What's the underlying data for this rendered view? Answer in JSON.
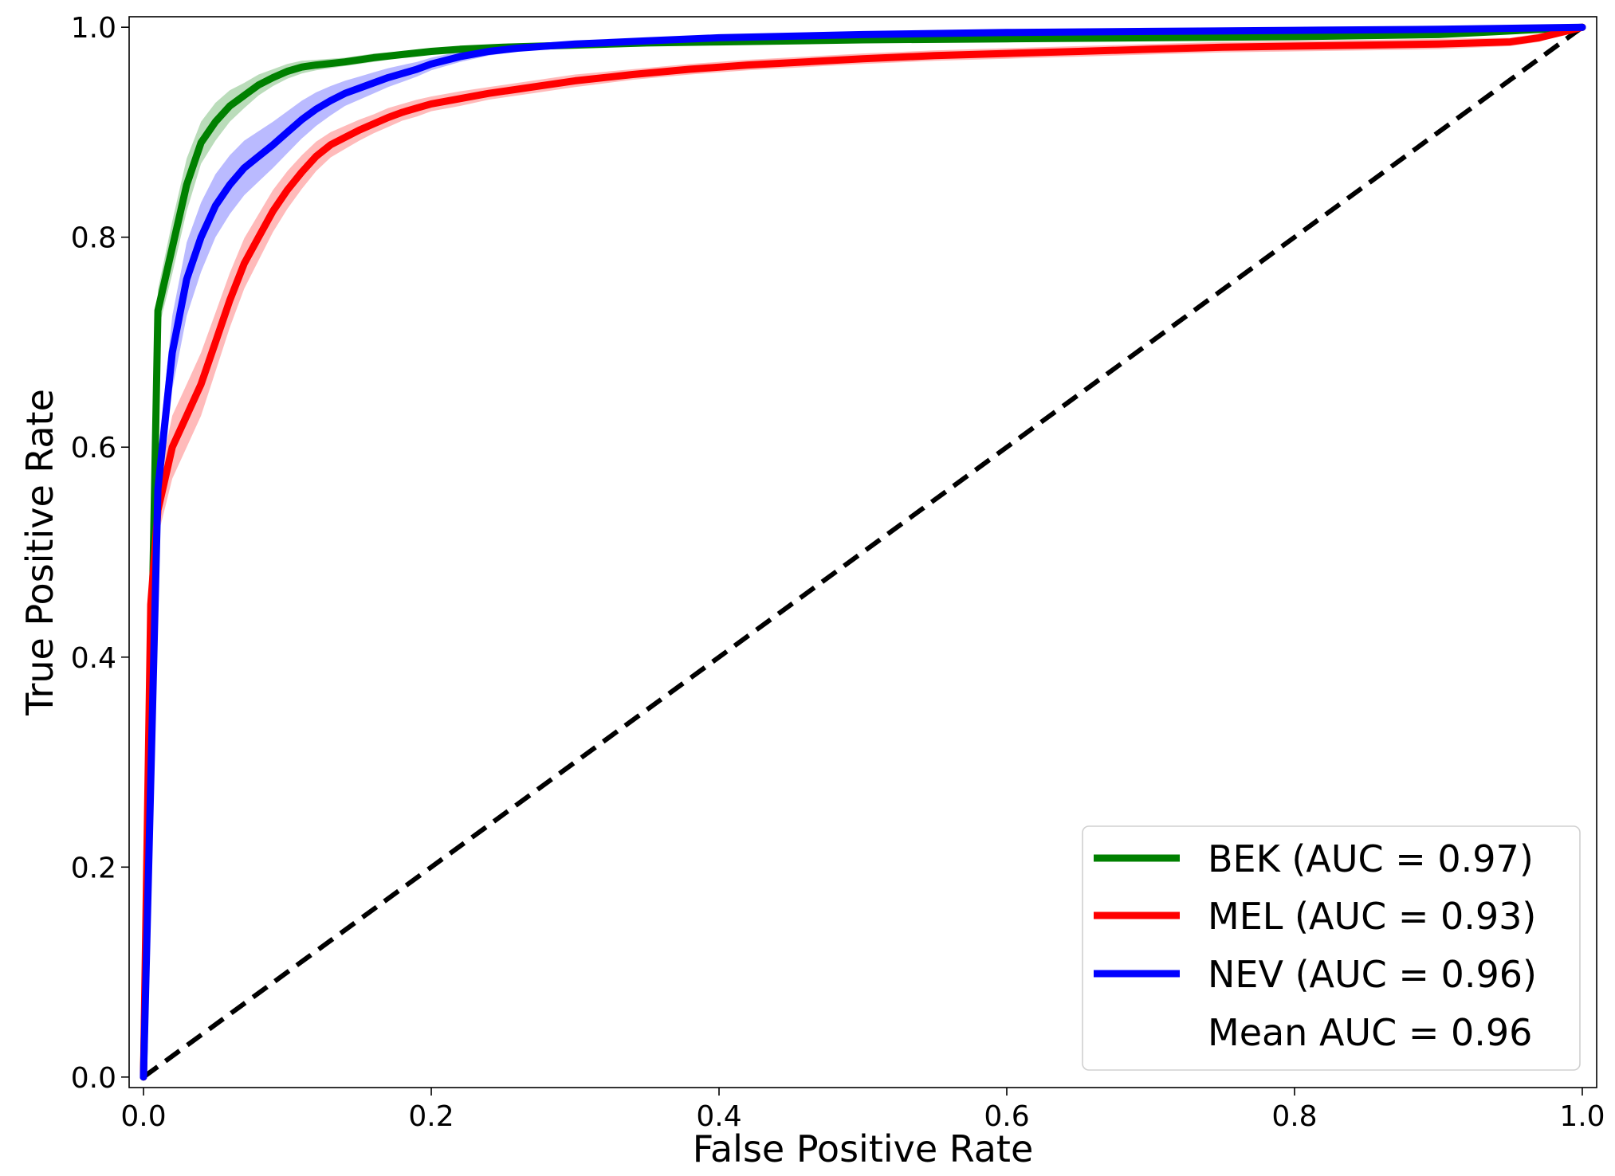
{
  "chart_data": {
    "type": "line",
    "title": "",
    "xlabel": "False Positive Rate",
    "ylabel": "True Positive Rate",
    "xlim": [
      -0.01,
      1.01
    ],
    "ylim": [
      -0.01,
      1.01
    ],
    "xticks": [
      {
        "value": 0.0,
        "label": "0.0"
      },
      {
        "value": 0.2,
        "label": "0.2"
      },
      {
        "value": 0.4,
        "label": "0.4"
      },
      {
        "value": 0.6,
        "label": "0.6"
      },
      {
        "value": 0.8,
        "label": "0.8"
      },
      {
        "value": 1.0,
        "label": "1.0"
      }
    ],
    "yticks": [
      {
        "value": 0.0,
        "label": "0.0"
      },
      {
        "value": 0.2,
        "label": "0.2"
      },
      {
        "value": 0.4,
        "label": "0.4"
      },
      {
        "value": 0.6,
        "label": "0.6"
      },
      {
        "value": 0.8,
        "label": "0.8"
      },
      {
        "value": 1.0,
        "label": "1.0"
      }
    ],
    "grid": false,
    "legend_position": "lower-right",
    "series": [
      {
        "key": "bek",
        "name": "BEK (AUC = 0.97)",
        "color": "#008000",
        "band_color": "#66b266",
        "x": [
          0,
          0.01,
          0.02,
          0.03,
          0.04,
          0.05,
          0.06,
          0.07,
          0.08,
          0.09,
          0.1,
          0.11,
          0.12,
          0.14,
          0.16,
          0.18,
          0.2,
          0.22,
          0.25,
          0.3,
          0.35,
          0.4,
          0.5,
          0.6,
          0.7,
          0.8,
          0.9,
          1.0
        ],
        "y": [
          0,
          0.73,
          0.79,
          0.85,
          0.89,
          0.91,
          0.925,
          0.935,
          0.945,
          0.952,
          0.958,
          0.962,
          0.964,
          0.967,
          0.971,
          0.974,
          0.977,
          0.979,
          0.981,
          0.983,
          0.985,
          0.986,
          0.988,
          0.989,
          0.99,
          0.991,
          0.993,
          1.0
        ],
        "band": [
          0,
          0.02,
          0.025,
          0.025,
          0.02,
          0.018,
          0.015,
          0.012,
          0.01,
          0.008,
          0.007,
          0.006,
          0.005,
          0.004,
          0.004,
          0.003,
          0.003,
          0.003,
          0.002,
          0.002,
          0.002,
          0.002,
          0.002,
          0.002,
          0.002,
          0.002,
          0.002,
          0
        ]
      },
      {
        "key": "mel",
        "name": "MEL (AUC = 0.93)",
        "color": "#ff0000",
        "band_color": "#ff6666",
        "x": [
          0,
          0.005,
          0.01,
          0.02,
          0.03,
          0.04,
          0.05,
          0.06,
          0.07,
          0.08,
          0.09,
          0.1,
          0.11,
          0.12,
          0.13,
          0.14,
          0.15,
          0.16,
          0.17,
          0.18,
          0.19,
          0.2,
          0.22,
          0.24,
          0.27,
          0.3,
          0.34,
          0.38,
          0.42,
          0.46,
          0.5,
          0.55,
          0.6,
          0.65,
          0.7,
          0.75,
          0.8,
          0.85,
          0.9,
          0.95,
          0.97,
          1.0
        ],
        "y": [
          0,
          0.45,
          0.54,
          0.6,
          0.63,
          0.66,
          0.7,
          0.74,
          0.775,
          0.8,
          0.825,
          0.845,
          0.862,
          0.877,
          0.888,
          0.895,
          0.902,
          0.908,
          0.914,
          0.919,
          0.923,
          0.927,
          0.932,
          0.937,
          0.943,
          0.949,
          0.955,
          0.96,
          0.964,
          0.967,
          0.97,
          0.973,
          0.975,
          0.977,
          0.979,
          0.981,
          0.982,
          0.983,
          0.984,
          0.986,
          0.99,
          1.0
        ],
        "band": [
          0,
          0.02,
          0.025,
          0.03,
          0.03,
          0.03,
          0.028,
          0.026,
          0.024,
          0.022,
          0.02,
          0.018,
          0.016,
          0.014,
          0.012,
          0.011,
          0.01,
          0.009,
          0.009,
          0.008,
          0.008,
          0.007,
          0.007,
          0.006,
          0.006,
          0.006,
          0.005,
          0.005,
          0.005,
          0.005,
          0.005,
          0.005,
          0.005,
          0.005,
          0.005,
          0.005,
          0.005,
          0.005,
          0.005,
          0.004,
          0.004,
          0
        ]
      },
      {
        "key": "nev",
        "name": "NEV (AUC = 0.96)",
        "color": "#0000ff",
        "band_color": "#6666ff",
        "x": [
          0,
          0.01,
          0.02,
          0.03,
          0.04,
          0.05,
          0.06,
          0.07,
          0.08,
          0.09,
          0.1,
          0.11,
          0.12,
          0.13,
          0.14,
          0.15,
          0.16,
          0.17,
          0.18,
          0.19,
          0.2,
          0.22,
          0.24,
          0.26,
          0.28,
          0.3,
          0.35,
          0.4,
          0.5,
          0.6,
          0.7,
          0.8,
          0.9,
          1.0
        ],
        "y": [
          0,
          0.56,
          0.69,
          0.76,
          0.8,
          0.83,
          0.85,
          0.866,
          0.877,
          0.888,
          0.9,
          0.912,
          0.922,
          0.93,
          0.937,
          0.942,
          0.947,
          0.952,
          0.956,
          0.96,
          0.965,
          0.972,
          0.977,
          0.98,
          0.982,
          0.984,
          0.987,
          0.99,
          0.993,
          0.995,
          0.996,
          0.997,
          0.998,
          1.0
        ],
        "band": [
          0,
          0.03,
          0.035,
          0.035,
          0.033,
          0.03,
          0.028,
          0.026,
          0.024,
          0.022,
          0.02,
          0.018,
          0.016,
          0.014,
          0.012,
          0.011,
          0.01,
          0.009,
          0.008,
          0.007,
          0.006,
          0.005,
          0.004,
          0.003,
          0.003,
          0.003,
          0.002,
          0.002,
          0.002,
          0.002,
          0.002,
          0.002,
          0.002,
          0
        ]
      }
    ],
    "reference_line": {
      "x": [
        0,
        1
      ],
      "y": [
        0,
        1
      ],
      "color": "#000000",
      "style": "dashed"
    },
    "legend": {
      "entries": [
        {
          "label": "BEK (AUC = 0.97)",
          "color": "#008000"
        },
        {
          "label": "MEL (AUC = 0.93)",
          "color": "#ff0000"
        },
        {
          "label": "NEV (AUC = 0.96)",
          "color": "#0000ff"
        }
      ],
      "extra_text": "Mean AUC = 0.96"
    }
  }
}
